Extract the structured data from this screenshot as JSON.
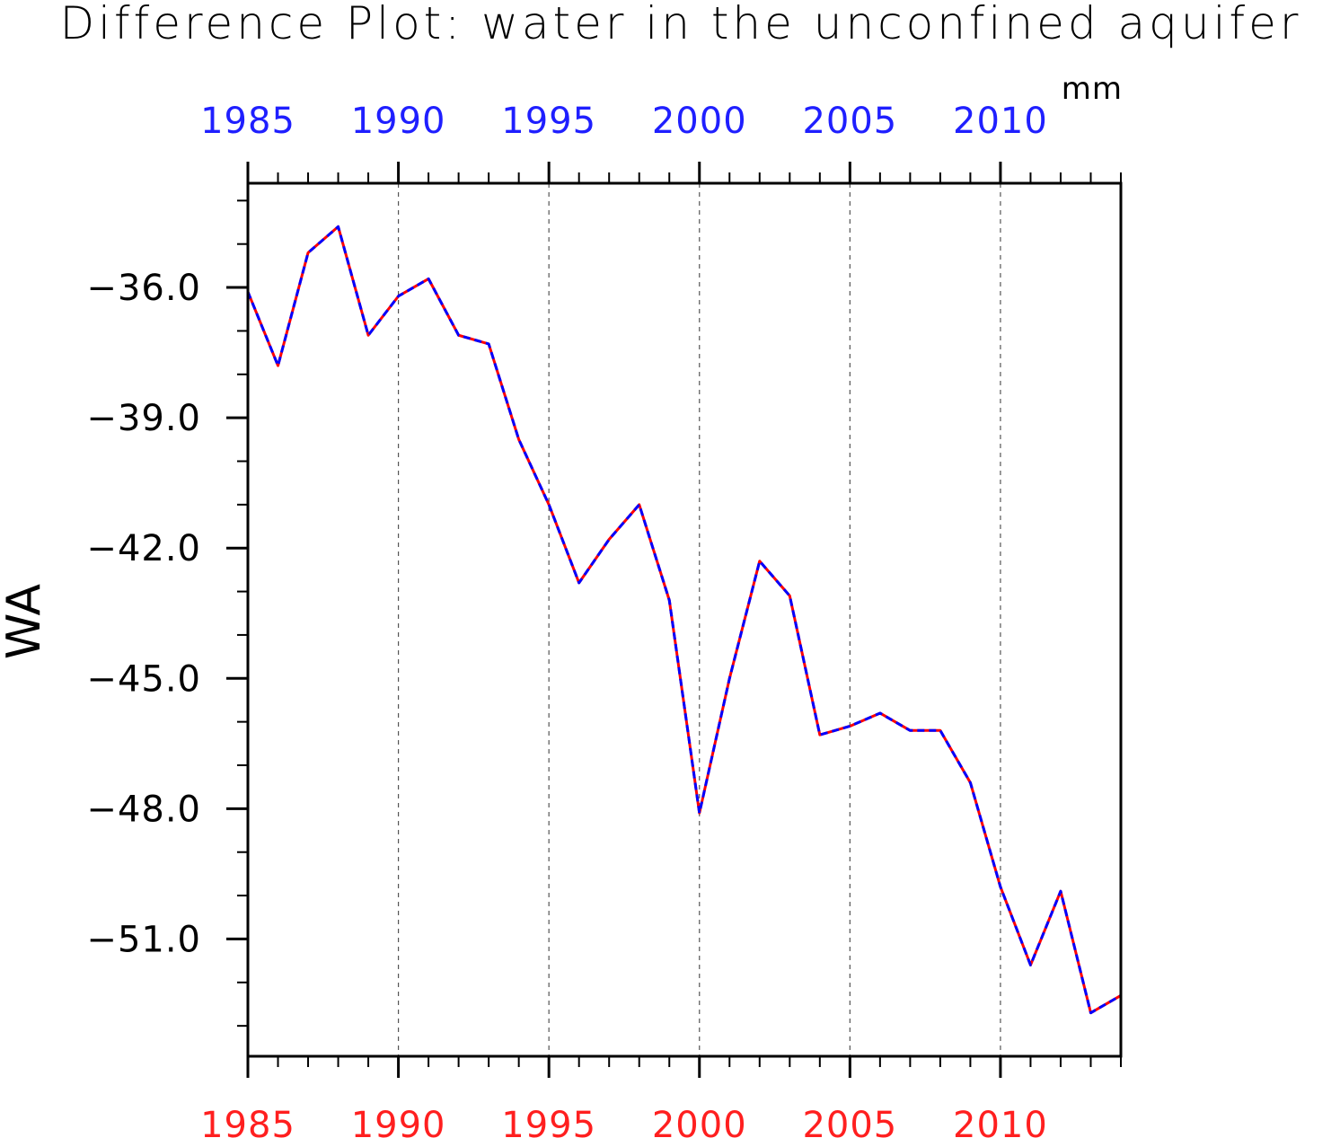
{
  "chart_data": {
    "type": "line",
    "title": "Difference Plot: water in the unconfined aquifer",
    "units": "mm",
    "ylabel": "WA",
    "xlim": [
      1985,
      2014
    ],
    "ylim": [
      -53.7,
      -33.6
    ],
    "x_major_ticks": [
      1985,
      1990,
      1995,
      2000,
      2005,
      2010
    ],
    "x_major_tick_labels": [
      "1985",
      "1990",
      "1995",
      "2000",
      "2005",
      "2010"
    ],
    "y_major_ticks": [
      -36.0,
      -39.0,
      -42.0,
      -45.0,
      -48.0,
      -51.0
    ],
    "y_major_tick_labels": [
      "−36.0",
      "−39.0",
      "−42.0",
      "−45.0",
      "−48.0",
      "−51.0"
    ],
    "grid": "vertical dashed at major x ticks",
    "colors": {
      "top_axis_labels": "#1f1fff",
      "bottom_axis_labels": "#ff1f1f",
      "series_solid": "#ff0000",
      "series_dashed": "#0000ff",
      "grid": "#555555"
    },
    "x": [
      1985,
      1986,
      1987,
      1988,
      1989,
      1990,
      1991,
      1992,
      1993,
      1994,
      1995,
      1996,
      1997,
      1998,
      1999,
      2000,
      2001,
      2002,
      2003,
      2004,
      2005,
      2006,
      2007,
      2008,
      2009,
      2010,
      2011,
      2012,
      2013,
      2014
    ],
    "series": [
      {
        "style": "solid",
        "color": "#ff0000",
        "values": [
          -36.1,
          -37.8,
          -35.2,
          -34.6,
          -37.1,
          -36.2,
          -35.8,
          -37.1,
          -37.3,
          -39.5,
          -41.0,
          -42.8,
          -41.8,
          -41.0,
          -43.2,
          -48.1,
          -45.0,
          -42.3,
          -43.1,
          -46.3,
          -46.1,
          -45.8,
          -46.2,
          -46.2,
          -47.4,
          -49.8,
          -51.6,
          -49.9,
          -52.7,
          -52.3
        ]
      },
      {
        "style": "dashed",
        "color": "#0000ff",
        "values": [
          -36.1,
          -37.8,
          -35.2,
          -34.6,
          -37.1,
          -36.2,
          -35.8,
          -37.1,
          -37.3,
          -39.5,
          -41.0,
          -42.8,
          -41.8,
          -41.0,
          -43.2,
          -48.1,
          -45.0,
          -42.3,
          -43.1,
          -46.3,
          -46.1,
          -45.8,
          -46.2,
          -46.2,
          -47.4,
          -49.8,
          -51.6,
          -49.9,
          -52.7,
          -52.3
        ]
      }
    ]
  }
}
